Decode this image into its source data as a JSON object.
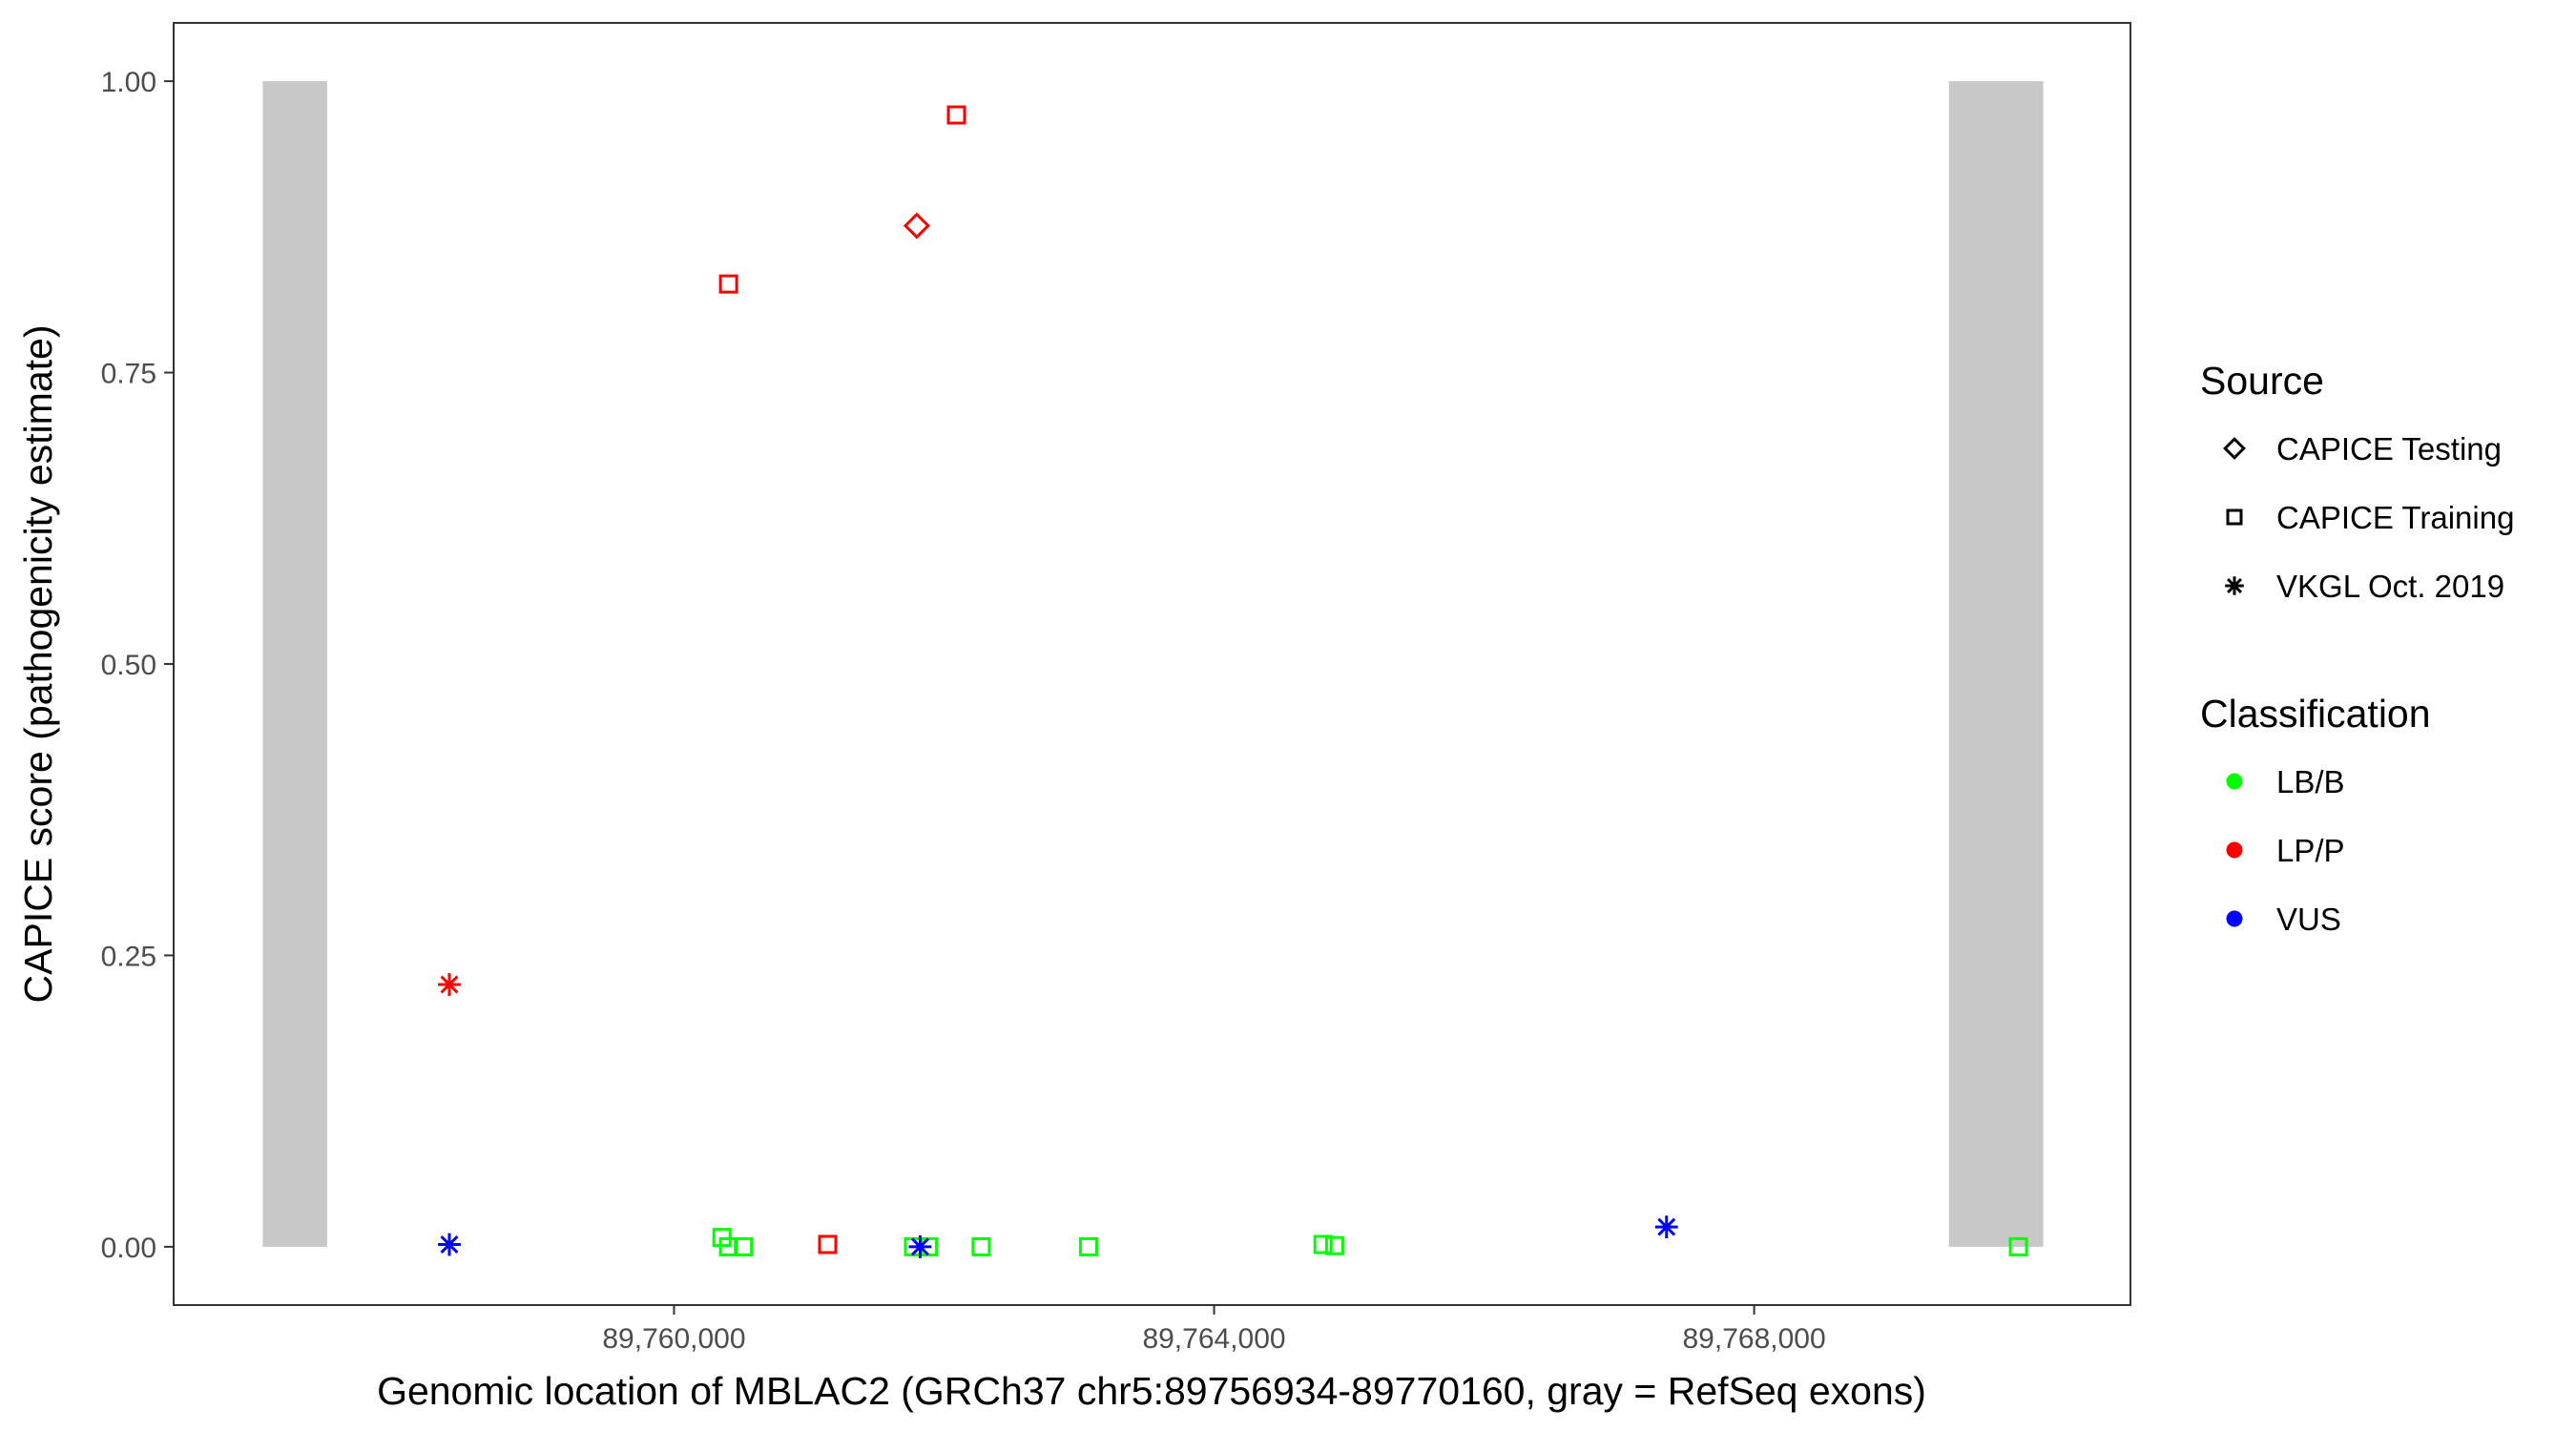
{
  "chart_data": {
    "type": "scatter",
    "xlabel": "Genomic location of MBLAC2 (GRCh37 chr5:89756934-89770160, gray = RefSeq exons)",
    "ylabel": "CAPICE score (pathogenicity estimate)",
    "xlim": [
      89756294,
      89770787
    ],
    "ylim": [
      -0.05,
      1.05
    ],
    "x_ticks": [
      89760000,
      89764000,
      89768000
    ],
    "x_tick_labels": [
      "89,760,000",
      "89,764,000",
      "89,768,000"
    ],
    "y_ticks": [
      0,
      0.25,
      0.5,
      0.75,
      1.0
    ],
    "y_tick_labels": [
      "0.00",
      "0.25",
      "0.50",
      "0.75",
      "1.00"
    ],
    "grid": false,
    "exons": [
      {
        "start": 89756954,
        "end": 89757431
      },
      {
        "start": 89769443,
        "end": 89770141
      }
    ],
    "exon_color": "#C8C8C8",
    "points": [
      {
        "x": 89758336,
        "y": 0.225,
        "source": "VKGL Oct. 2019",
        "classification": "LP/P"
      },
      {
        "x": 89758336,
        "y": 0.002,
        "source": "VKGL Oct. 2019",
        "classification": "VUS"
      },
      {
        "x": 89760355,
        "y": 0.008,
        "source": "CAPICE Training",
        "classification": "LB/B"
      },
      {
        "x": 89760404,
        "y": 0.0,
        "source": "CAPICE Training",
        "classification": "LB/B"
      },
      {
        "x": 89760514,
        "y": 0.0,
        "source": "CAPICE Training",
        "classification": "LB/B"
      },
      {
        "x": 89760404,
        "y": 0.826,
        "source": "CAPICE Training",
        "classification": "LP/P"
      },
      {
        "x": 89761138,
        "y": 0.002,
        "source": "CAPICE Training",
        "classification": "LP/P"
      },
      {
        "x": 89761798,
        "y": 0.876,
        "source": "CAPICE Testing",
        "classification": "LP/P"
      },
      {
        "x": 89762092,
        "y": 0.971,
        "source": "CAPICE Training",
        "classification": "LP/P"
      },
      {
        "x": 89761774,
        "y": 0.0,
        "source": "CAPICE Training",
        "classification": "LB/B"
      },
      {
        "x": 89761884,
        "y": 0.0,
        "source": "CAPICE Training",
        "classification": "LB/B"
      },
      {
        "x": 89761823,
        "y": 0.0,
        "source": "VKGL Oct. 2019",
        "classification": "VUS"
      },
      {
        "x": 89762275,
        "y": 0.0,
        "source": "CAPICE Training",
        "classification": "LB/B"
      },
      {
        "x": 89763070,
        "y": 0.0,
        "source": "CAPICE Training",
        "classification": "LB/B"
      },
      {
        "x": 89764807,
        "y": 0.002,
        "source": "CAPICE Training",
        "classification": "LB/B"
      },
      {
        "x": 89764893,
        "y": 0.001,
        "source": "CAPICE Training",
        "classification": "LB/B"
      },
      {
        "x": 89767351,
        "y": 0.017,
        "source": "VKGL Oct. 2019",
        "classification": "VUS"
      },
      {
        "x": 89769957,
        "y": 0.0,
        "source": "CAPICE Training",
        "classification": "LB/B"
      }
    ],
    "legend_placement": "right",
    "legends": [
      {
        "title": "Source",
        "entries": [
          {
            "label": "CAPICE Testing",
            "shape": "diamond"
          },
          {
            "label": "CAPICE Training",
            "shape": "square"
          },
          {
            "label": "VKGL Oct. 2019",
            "shape": "asterisk"
          }
        ]
      },
      {
        "title": "Classification",
        "entries": [
          {
            "label": "LB/B",
            "color": "#00FF00"
          },
          {
            "label": "LP/P",
            "color": "#FF0000"
          },
          {
            "label": "VUS",
            "color": "#0000FF"
          }
        ]
      }
    ]
  }
}
